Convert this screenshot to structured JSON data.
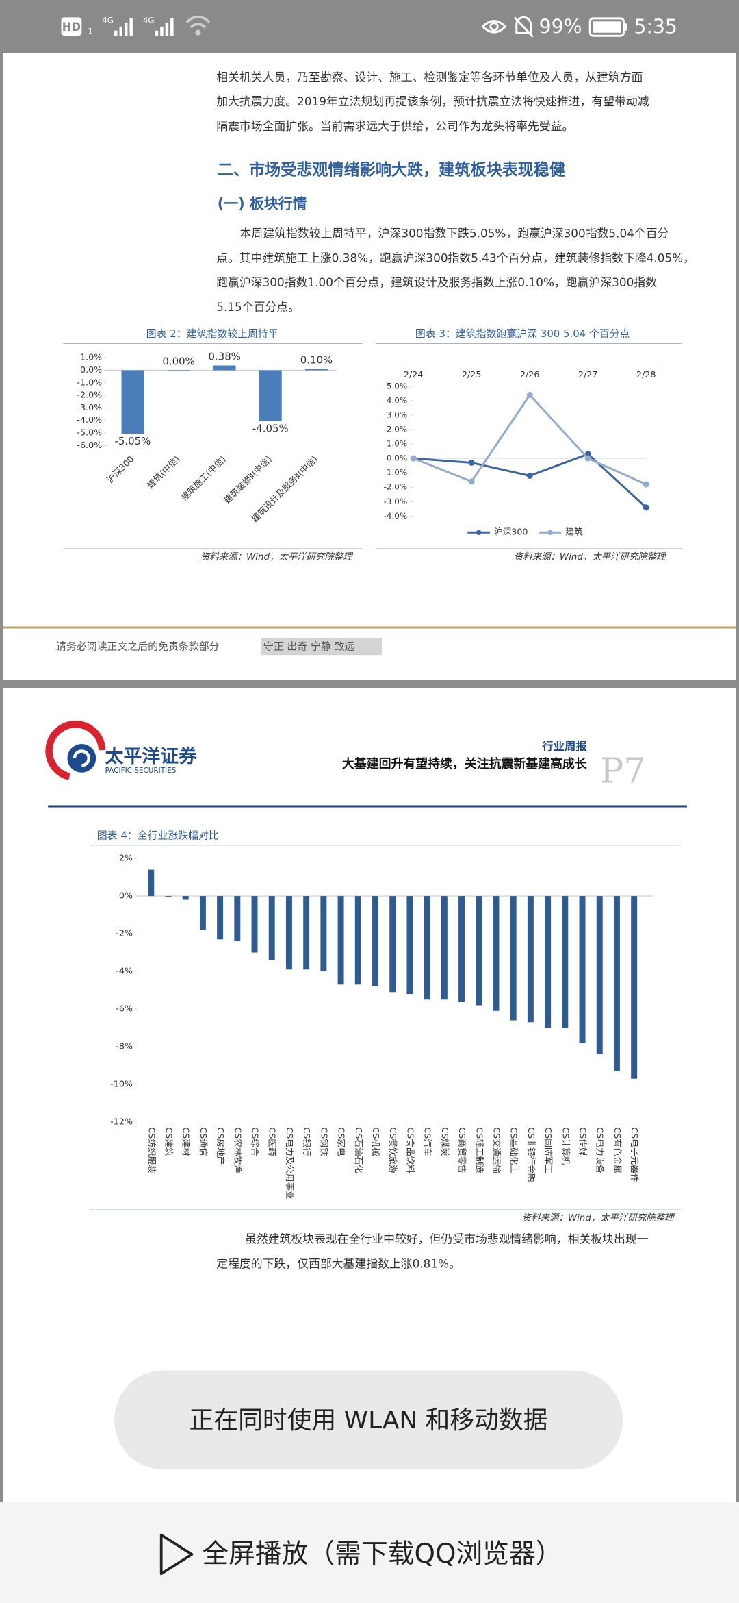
{
  "status_bar": {
    "hd": "HD",
    "sim": "1",
    "signal1": "4G",
    "signal2": "4G",
    "battery": "99%",
    "time": "5:35"
  },
  "page1": {
    "paragraph1": [
      "相关机关人员，乃至勘察、设计、施工、检测鉴定等各环节单位及人员，从建筑方面",
      "加大抗震力度。2019年立法规划再提该条例，预计抗震立法将快速推进，有望带动减",
      "隔震市场全面扩张。当前需求远大于供给，公司作为龙头将率先受益。"
    ],
    "heading": "二、市场受悲观情绪影响大跌，建筑板块表现稳健",
    "subheading": "(一) 板块行情",
    "paragraph2": [
      "本周建筑指数较上周持平，沪深300指数下跌5.05%，跑赢沪深300指数5.04个百分",
      "点。其中建筑施工上涨0.38%，跑赢沪深300指数5.43个百分点，建筑装修指数下降4.05%，",
      "跑赢沪深300指数1.00个百分点，建筑设计及服务指数上涨0.10%，跑赢沪深300指数",
      "5.15个百分点。"
    ],
    "chart2": {
      "type": "bar",
      "title": "图表 2：建筑指数较上周持平",
      "color": "#4a7ebb",
      "categories": [
        "沪深300",
        "建筑(中信)",
        "建筑施工(中信)",
        "建筑装修Ⅱ(中信)",
        "建筑设计及服务Ⅱ(中信)"
      ],
      "values": [
        -5.05,
        0.0,
        0.38,
        -4.05,
        0.1
      ],
      "value_labels": [
        "-5.05%",
        "0.00%",
        "0.38%",
        "-4.05%",
        "0.10%"
      ],
      "ylim": [
        -6,
        1
      ],
      "yticks": [
        {
          "value": 1,
          "label": "1.0%"
        },
        {
          "value": 0,
          "label": "0.0%"
        },
        {
          "value": -1,
          "label": "-1.0%"
        },
        {
          "value": -2,
          "label": "-2.0%"
        },
        {
          "value": -3,
          "label": "-3.0%"
        },
        {
          "value": -4,
          "label": "-4.0%"
        },
        {
          "value": -5,
          "label": "-5.0%"
        },
        {
          "value": -6,
          "label": "-6.0%"
        }
      ],
      "source": "资料来源：Wind，太平洋研究院整理"
    },
    "chart3": {
      "type": "line",
      "title": "图表 3：建筑指数跑赢沪深 300 5.04 个百分点",
      "categories": [
        "2/24",
        "2/25",
        "2/26",
        "2/27",
        "2/28"
      ],
      "series": [
        {
          "name": "沪深300",
          "color": "#3b64a0",
          "values": [
            0.0,
            -0.3,
            -1.2,
            0.3,
            -3.4
          ]
        },
        {
          "name": "建筑",
          "color": "#91acd0",
          "values": [
            0.0,
            -1.6,
            4.4,
            0.0,
            -1.8
          ]
        }
      ],
      "ylim": [
        -4,
        5
      ],
      "yticks": [
        {
          "value": 5,
          "label": "5.0%"
        },
        {
          "value": 4,
          "label": "4.0%"
        },
        {
          "value": 3,
          "label": "3.0%"
        },
        {
          "value": 2,
          "label": "2.0%"
        },
        {
          "value": 1,
          "label": "1.0%"
        },
        {
          "value": 0,
          "label": "0.0%"
        },
        {
          "value": -1,
          "label": "-1.0%"
        },
        {
          "value": -2,
          "label": "-2.0%"
        },
        {
          "value": -3,
          "label": "-3.0%"
        },
        {
          "value": -4,
          "label": "-4.0%"
        }
      ],
      "legend": "bottom",
      "source": "资料来源：Wind，太平洋研究院整理"
    },
    "footer": {
      "disclaimer": "请务必阅读正文之后的免责条款部分",
      "motto": "守正 出奇 宁静 致远"
    }
  },
  "page2": {
    "logo": {
      "name": "太平洋证券",
      "english": "PACIFIC SECURITIES"
    },
    "report_type": "行业周报",
    "report_title": "大基建回升有望持续，关注抗震新基建高成长",
    "page_number": "P7",
    "chart4": {
      "type": "bar",
      "title": "图表 4：全行业涨跌幅对比",
      "color": "#2f5b93",
      "categories": [
        "CS纺织服装",
        "CS建筑",
        "CS建材",
        "CS通信",
        "CS房地产",
        "CS农林牧渔",
        "CS综合",
        "CS医药",
        "CS电力及公用事业",
        "CS银行",
        "CS钢铁",
        "CS家电",
        "CS石油石化",
        "CS机械",
        "CS餐饮旅游",
        "CS食品饮料",
        "CS汽车",
        "CS煤炭",
        "CS商贸零售",
        "CS轻工制造",
        "CS交通运输",
        "CS基础化工",
        "CS非银行金融",
        "CS国防军工",
        "CS计算机",
        "CS传媒",
        "CS电力设备",
        "CS有色金属",
        "CS电子元器件"
      ],
      "values": [
        1.4,
        0.0,
        -0.2,
        -1.8,
        -2.3,
        -2.4,
        -3.0,
        -3.4,
        -3.9,
        -3.9,
        -4.0,
        -4.7,
        -4.7,
        -4.8,
        -5.1,
        -5.2,
        -5.5,
        -5.5,
        -5.6,
        -5.8,
        -6.1,
        -6.6,
        -6.7,
        -7.0,
        -7.0,
        -7.8,
        -8.4,
        -9.3,
        -9.7
      ],
      "ylim": [
        -12,
        2
      ],
      "yticks": [
        {
          "value": 2,
          "label": "2%"
        },
        {
          "value": 0,
          "label": "0%"
        },
        {
          "value": -2,
          "label": "-2%"
        },
        {
          "value": -4,
          "label": "-4%"
        },
        {
          "value": -6,
          "label": "-6%"
        },
        {
          "value": -8,
          "label": "-8%"
        },
        {
          "value": -10,
          "label": "-10%"
        },
        {
          "value": -12,
          "label": "-12%"
        }
      ],
      "source": "资料来源：Wind，太平洋研究院整理"
    },
    "paragraph": [
      "虽然建筑板块表现在全行业中较好，但仍受市场悲观情绪影响，相关板块出现一",
      "定程度的下跌，仅西部大基建指数上涨0.81%。"
    ]
  },
  "toast": "正在同时使用 WLAN 和移动数据",
  "bottom_bar": "全屏播放（需下载QQ浏览器）"
}
